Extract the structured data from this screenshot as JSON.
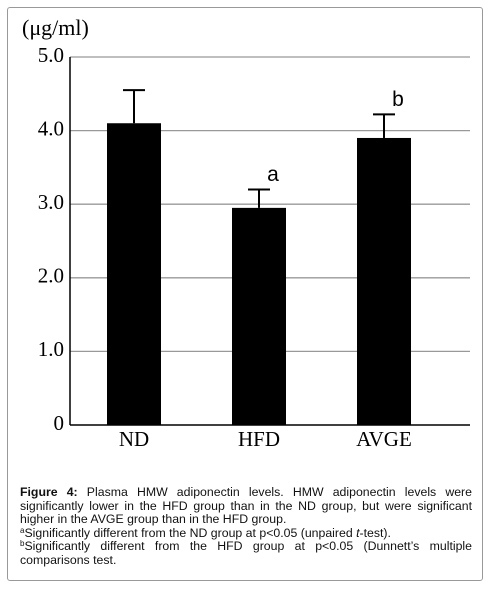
{
  "chart_data": {
    "type": "bar",
    "y_label": "(μg/ml)",
    "categories": [
      "ND",
      "HFD",
      "AVGE"
    ],
    "values": [
      4.1,
      2.95,
      3.9
    ],
    "errors": [
      0.45,
      0.25,
      0.32
    ],
    "annotations": [
      null,
      "a",
      "b"
    ],
    "color": "#000000",
    "ylim": [
      0,
      5
    ],
    "yticks": [
      0,
      {
        "value": 1,
        "label": "1.0"
      },
      {
        "value": 2,
        "label": "2.0"
      },
      {
        "value": 3,
        "label": "3.0"
      },
      {
        "value": 4,
        "label": "4.0"
      },
      {
        "value": 5,
        "label": "5.0"
      }
    ],
    "grid": true
  },
  "caption": {
    "label": "Figure 4:",
    "text": " Plasma HMW adiponectin levels. HMW adiponectin levels were significantly lower in the HFD group than in the ND group, but were significant higher in the AVGE group than in the HFD group.",
    "notes": [
      {
        "mark": "a",
        "text": "Significantly different from the ND group at p<0.05 (unpaired ",
        "italic": "t",
        "end": "-test)."
      },
      {
        "mark": "b",
        "text": "Significantly different from the HFD group at p<0.05 (Dunnett’s multiple comparisons test."
      }
    ]
  }
}
